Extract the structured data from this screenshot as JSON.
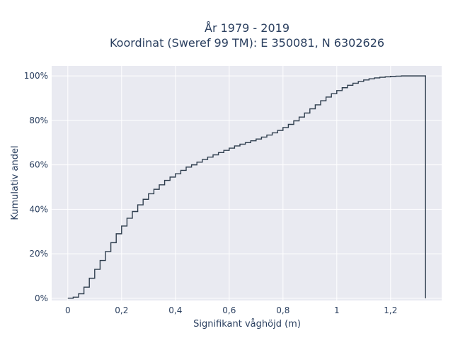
{
  "chart_data": {
    "type": "line",
    "title": "År 1979 - 2019",
    "subtitle": "Koordinat (Sweref 99 TM): E 350081, N 6302626",
    "xlabel": "Signifikant våghöjd (m)",
    "ylabel": "Kumulativ andel",
    "xlim": [
      -0.06,
      1.39
    ],
    "ylim": [
      -0.01,
      1.045
    ],
    "x_ticks": [
      {
        "value": 0,
        "label": "0"
      },
      {
        "value": 0.2,
        "label": "0,2"
      },
      {
        "value": 0.4,
        "label": "0,4"
      },
      {
        "value": 0.6,
        "label": "0,6"
      },
      {
        "value": 0.8,
        "label": "0,8"
      },
      {
        "value": 1.0,
        "label": "1"
      },
      {
        "value": 1.2,
        "label": "1,2"
      }
    ],
    "y_ticks": [
      {
        "value": 0,
        "label": "0%"
      },
      {
        "value": 0.2,
        "label": "20%"
      },
      {
        "value": 0.4,
        "label": "40%"
      },
      {
        "value": 0.6,
        "label": "60%"
      },
      {
        "value": 0.8,
        "label": "80%"
      },
      {
        "value": 1.0,
        "label": "100%"
      }
    ],
    "grid": true,
    "step": "post",
    "series": [
      {
        "color": "#2f3e4e",
        "x": [
          0.0,
          0.02,
          0.04,
          0.06,
          0.08,
          0.1,
          0.12,
          0.14,
          0.16,
          0.18,
          0.2,
          0.22,
          0.24,
          0.26,
          0.28,
          0.3,
          0.32,
          0.34,
          0.36,
          0.38,
          0.4,
          0.42,
          0.44,
          0.46,
          0.48,
          0.5,
          0.52,
          0.54,
          0.56,
          0.58,
          0.6,
          0.62,
          0.64,
          0.66,
          0.68,
          0.7,
          0.72,
          0.74,
          0.76,
          0.78,
          0.8,
          0.82,
          0.84,
          0.86,
          0.88,
          0.9,
          0.92,
          0.94,
          0.96,
          0.98,
          1.0,
          1.02,
          1.04,
          1.06,
          1.08,
          1.1,
          1.12,
          1.14,
          1.16,
          1.18,
          1.2,
          1.22,
          1.24,
          1.26,
          1.28,
          1.3,
          1.33
        ],
        "y": [
          0.0,
          0.005,
          0.02,
          0.05,
          0.09,
          0.13,
          0.17,
          0.21,
          0.25,
          0.29,
          0.325,
          0.36,
          0.39,
          0.42,
          0.445,
          0.47,
          0.49,
          0.51,
          0.53,
          0.545,
          0.56,
          0.575,
          0.59,
          0.6,
          0.612,
          0.624,
          0.635,
          0.645,
          0.655,
          0.665,
          0.675,
          0.685,
          0.693,
          0.7,
          0.708,
          0.716,
          0.725,
          0.734,
          0.744,
          0.755,
          0.768,
          0.782,
          0.798,
          0.815,
          0.833,
          0.852,
          0.87,
          0.888,
          0.905,
          0.92,
          0.934,
          0.947,
          0.958,
          0.967,
          0.975,
          0.982,
          0.987,
          0.991,
          0.994,
          0.996,
          0.998,
          0.999,
          1.0,
          1.0,
          1.0,
          1.0,
          1.0
        ]
      }
    ]
  }
}
